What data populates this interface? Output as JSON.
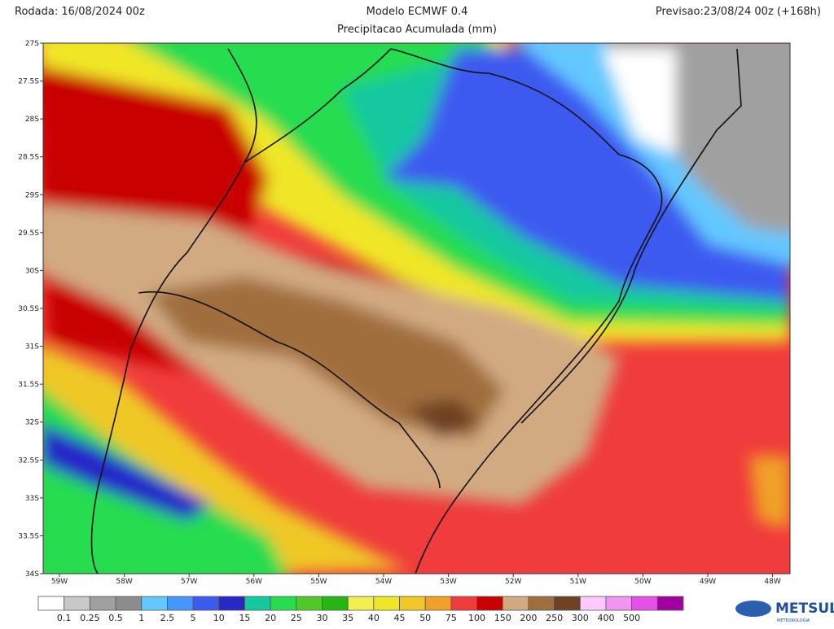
{
  "header": {
    "run": "Rodada: 16/08/2024 00z",
    "title": "Modelo ECMWF 0.4",
    "subtitle": "Precipitacao Acumulada (mm)",
    "forecast": "Previsao:23/08/24 00z (+168h)"
  },
  "map": {
    "lat_labels": [
      "27S",
      "27.5S",
      "28S",
      "28.5S",
      "29S",
      "29.5S",
      "30S",
      "30.5S",
      "31S",
      "31.5S",
      "32S",
      "32.5S",
      "33S",
      "33.5S",
      "34S"
    ],
    "lon_labels": [
      "59W",
      "58W",
      "57W",
      "56W",
      "55W",
      "54W",
      "53W",
      "52W",
      "51W",
      "50W",
      "49W",
      "48W"
    ]
  },
  "legend": {
    "colors": [
      "#ffffff",
      "#c8c8c8",
      "#a0a0a0",
      "#8c8c8c",
      "#64c8ff",
      "#4696ff",
      "#3c5af0",
      "#2828c8",
      "#14c8a0",
      "#28dc50",
      "#50c828",
      "#28b414",
      "#f0f050",
      "#f0e628",
      "#f0c828",
      "#f0a028",
      "#f03c3c",
      "#c80000",
      "#d2aa82",
      "#a06e3c",
      "#6e4123",
      "#ffc8ff",
      "#f096f0",
      "#e650e6",
      "#a000a0"
    ],
    "labels": [
      "0.1",
      "0.25",
      "0.5",
      "1",
      "2.5",
      "5",
      "10",
      "15",
      "20",
      "25",
      "30",
      "35",
      "40",
      "45",
      "50",
      "75",
      "100",
      "150",
      "200",
      "250",
      "300",
      "400",
      "500"
    ]
  },
  "logo": {
    "name": "METSUL",
    "tagline": "METEOROLOGIA"
  }
}
